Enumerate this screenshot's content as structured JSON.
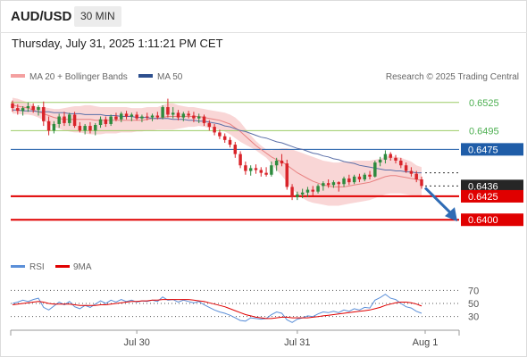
{
  "header": {
    "symbol": "AUD/USD",
    "interval": "30 MIN",
    "datetime": "Thursday, July 31, 2025 1:11:21 PM CET"
  },
  "legend": {
    "ma20_bb": "MA 20 + Bollinger Bands",
    "ma50": "MA 50",
    "credit": "Research © 2025 Trading Central",
    "rsi": "RSI",
    "rsi_ma": "9MA"
  },
  "colors": {
    "bullish": "#2e8b3e",
    "bearish": "#d9242a",
    "band_fill": "#f7c8c8",
    "ma20": "#e88080",
    "ma50": "#5b6fa8",
    "level_green": "#9ccc65",
    "level_blue": "#1f5da8",
    "level_red": "#e00000",
    "arrow": "#2f6cb5",
    "rsi": "#5b8fd8",
    "rsi_ma": "#e00000"
  },
  "chart_data": {
    "type": "candlestick",
    "symbol": "AUD/USD",
    "timeframe": "30 MIN",
    "x_ticks": [
      "Jul 30",
      "Jul 31",
      "Aug 1"
    ],
    "y_range": [
      0.6385,
      0.654
    ],
    "levels": [
      {
        "value": 0.6525,
        "label": "0.6525",
        "style": "green-line"
      },
      {
        "value": 0.6495,
        "label": "0.6495",
        "style": "green-line"
      },
      {
        "value": 0.6475,
        "label": "0.6475",
        "style": "blue-line"
      },
      {
        "value": 0.6436,
        "label": "0.6436",
        "style": "last-price"
      },
      {
        "value": 0.6425,
        "label": "0.6425",
        "style": "red-line"
      },
      {
        "value": 0.64,
        "label": "0.6400",
        "style": "red-line"
      }
    ],
    "forecast_arrow": {
      "from": 0.6434,
      "to": 0.6402
    },
    "candles": [
      [
        0.6524,
        0.6527,
        0.6515,
        0.6519
      ],
      [
        0.6519,
        0.6523,
        0.6512,
        0.6516
      ],
      [
        0.6516,
        0.6521,
        0.6511,
        0.6519
      ],
      [
        0.6519,
        0.6525,
        0.6515,
        0.6521
      ],
      [
        0.6521,
        0.6524,
        0.6514,
        0.6517
      ],
      [
        0.6517,
        0.6522,
        0.6511,
        0.652
      ],
      [
        0.652,
        0.6526,
        0.65,
        0.6505
      ],
      [
        0.6505,
        0.651,
        0.649,
        0.6495
      ],
      [
        0.6495,
        0.6505,
        0.6492,
        0.6502
      ],
      [
        0.6502,
        0.6513,
        0.6498,
        0.651
      ],
      [
        0.651,
        0.6515,
        0.65,
        0.6503
      ],
      [
        0.6503,
        0.6514,
        0.65,
        0.6512
      ],
      [
        0.6512,
        0.6515,
        0.6498,
        0.65
      ],
      [
        0.65,
        0.6504,
        0.6493,
        0.6495
      ],
      [
        0.6495,
        0.6502,
        0.6491,
        0.65
      ],
      [
        0.65,
        0.6504,
        0.6492,
        0.6495
      ],
      [
        0.6495,
        0.6503,
        0.649,
        0.6501
      ],
      [
        0.6501,
        0.651,
        0.6498,
        0.6507
      ],
      [
        0.6507,
        0.651,
        0.6499,
        0.6502
      ],
      [
        0.6502,
        0.6512,
        0.65,
        0.651
      ],
      [
        0.651,
        0.6514,
        0.6505,
        0.6507
      ],
      [
        0.6507,
        0.6515,
        0.6504,
        0.6513
      ],
      [
        0.6513,
        0.6516,
        0.6507,
        0.651
      ],
      [
        0.651,
        0.6514,
        0.6505,
        0.6512
      ],
      [
        0.6512,
        0.6515,
        0.6506,
        0.6508
      ],
      [
        0.6508,
        0.6512,
        0.6504,
        0.651
      ],
      [
        0.651,
        0.6514,
        0.6506,
        0.6509
      ],
      [
        0.6509,
        0.6513,
        0.6505,
        0.6511
      ],
      [
        0.6511,
        0.6515,
        0.6507,
        0.6509
      ],
      [
        0.6509,
        0.6522,
        0.6507,
        0.652
      ],
      [
        0.652,
        0.6529,
        0.6509,
        0.6512
      ],
      [
        0.6512,
        0.652,
        0.6508,
        0.6514
      ],
      [
        0.6514,
        0.6517,
        0.6506,
        0.6509
      ],
      [
        0.6509,
        0.6515,
        0.6505,
        0.6513
      ],
      [
        0.6513,
        0.6516,
        0.6508,
        0.6511
      ],
      [
        0.6511,
        0.6515,
        0.6504,
        0.6508
      ],
      [
        0.6508,
        0.6513,
        0.6503,
        0.651
      ],
      [
        0.651,
        0.6512,
        0.65,
        0.6503
      ],
      [
        0.6503,
        0.6506,
        0.6495,
        0.6499
      ],
      [
        0.6499,
        0.6502,
        0.649,
        0.6493
      ],
      [
        0.6493,
        0.6496,
        0.6486,
        0.6489
      ],
      [
        0.6489,
        0.6492,
        0.6482,
        0.6485
      ],
      [
        0.6485,
        0.6488,
        0.6477,
        0.648
      ],
      [
        0.648,
        0.6483,
        0.6466,
        0.647
      ],
      [
        0.647,
        0.6473,
        0.6455,
        0.6458
      ],
      [
        0.6458,
        0.6462,
        0.6448,
        0.6452
      ],
      [
        0.6452,
        0.6458,
        0.6447,
        0.6455
      ],
      [
        0.6455,
        0.6459,
        0.6449,
        0.6453
      ],
      [
        0.6453,
        0.6456,
        0.6446,
        0.645
      ],
      [
        0.645,
        0.6456,
        0.6446,
        0.6448
      ],
      [
        0.6448,
        0.6462,
        0.6446,
        0.6458
      ],
      [
        0.6458,
        0.6466,
        0.6452,
        0.6463
      ],
      [
        0.6463,
        0.647,
        0.6457,
        0.646
      ],
      [
        0.646,
        0.6464,
        0.6432,
        0.6435
      ],
      [
        0.6435,
        0.6438,
        0.6421,
        0.6424
      ],
      [
        0.6424,
        0.643,
        0.6421,
        0.6427
      ],
      [
        0.6427,
        0.6433,
        0.6423,
        0.6429
      ],
      [
        0.6429,
        0.6435,
        0.6424,
        0.6432
      ],
      [
        0.6432,
        0.6436,
        0.6426,
        0.643
      ],
      [
        0.643,
        0.6438,
        0.6428,
        0.6436
      ],
      [
        0.6436,
        0.6441,
        0.6431,
        0.6439
      ],
      [
        0.6439,
        0.6443,
        0.6434,
        0.6437
      ],
      [
        0.6437,
        0.6442,
        0.6434,
        0.644
      ],
      [
        0.644,
        0.6441,
        0.643,
        0.6438
      ],
      [
        0.6438,
        0.6446,
        0.6435,
        0.6444
      ],
      [
        0.6444,
        0.6448,
        0.6437,
        0.644
      ],
      [
        0.644,
        0.6448,
        0.6438,
        0.6446
      ],
      [
        0.6446,
        0.6449,
        0.644,
        0.6443
      ],
      [
        0.6443,
        0.645,
        0.6441,
        0.6448
      ],
      [
        0.6448,
        0.6452,
        0.6443,
        0.6446
      ],
      [
        0.6446,
        0.6463,
        0.6445,
        0.6461
      ],
      [
        0.6461,
        0.6467,
        0.6457,
        0.6464
      ],
      [
        0.6464,
        0.6474,
        0.646,
        0.647
      ],
      [
        0.647,
        0.6472,
        0.6463,
        0.6466
      ],
      [
        0.6466,
        0.6469,
        0.646,
        0.6463
      ],
      [
        0.6463,
        0.6466,
        0.6455,
        0.6458
      ],
      [
        0.6458,
        0.6461,
        0.645,
        0.6452
      ],
      [
        0.6452,
        0.6456,
        0.6446,
        0.6449
      ],
      [
        0.6449,
        0.6452,
        0.644,
        0.6443
      ],
      [
        0.6443,
        0.6446,
        0.6433,
        0.6436
      ]
    ],
    "bollinger": {
      "upper": [
        0.653,
        0.6529,
        0.6527,
        0.6525,
        0.6522,
        0.652,
        0.652,
        0.6519,
        0.6518,
        0.6518,
        0.6519,
        0.652,
        0.6521,
        0.6521,
        0.6522,
        0.6522,
        0.6521,
        0.652,
        0.652,
        0.652,
        0.652,
        0.652,
        0.652,
        0.6519,
        0.6519,
        0.6519,
        0.652,
        0.652,
        0.652,
        0.6522,
        0.6524,
        0.6524,
        0.6522,
        0.6521,
        0.652,
        0.652,
        0.6519,
        0.6518,
        0.6517,
        0.6516,
        0.6515,
        0.6514,
        0.6512,
        0.6509,
        0.6504,
        0.6497,
        0.649,
        0.6484,
        0.6479,
        0.6475,
        0.6474,
        0.6475,
        0.6476,
        0.6476,
        0.6475,
        0.6473,
        0.6471,
        0.6469,
        0.6467,
        0.6465,
        0.6463,
        0.6462,
        0.6461,
        0.6461,
        0.6462,
        0.6462,
        0.6463,
        0.6463,
        0.6463,
        0.6463,
        0.6464,
        0.6465,
        0.6467,
        0.6468,
        0.6467,
        0.6466,
        0.6464,
        0.6462,
        0.6458,
        0.6456
      ],
      "middle": [
        0.6522,
        0.6521,
        0.652,
        0.6519,
        0.6517,
        0.6515,
        0.6513,
        0.6511,
        0.6509,
        0.6508,
        0.6507,
        0.6507,
        0.6507,
        0.6507,
        0.6507,
        0.6507,
        0.6506,
        0.6506,
        0.6506,
        0.6506,
        0.6506,
        0.6506,
        0.6506,
        0.6506,
        0.6506,
        0.6506,
        0.6507,
        0.6508,
        0.6508,
        0.6509,
        0.651,
        0.651,
        0.651,
        0.651,
        0.651,
        0.651,
        0.651,
        0.6509,
        0.6508,
        0.6507,
        0.6506,
        0.6504,
        0.6502,
        0.6498,
        0.6494,
        0.6489,
        0.6484,
        0.6479,
        0.6475,
        0.6471,
        0.6467,
        0.6464,
        0.6462,
        0.6458,
        0.6454,
        0.645,
        0.6447,
        0.6444,
        0.6441,
        0.6439,
        0.6437,
        0.6436,
        0.6435,
        0.6435,
        0.6435,
        0.6436,
        0.6437,
        0.6438,
        0.6439,
        0.644,
        0.6442,
        0.6444,
        0.6446,
        0.6447,
        0.6447,
        0.6446,
        0.6445,
        0.6444,
        0.6443,
        0.6442
      ],
      "lower": [
        0.6513,
        0.6513,
        0.6512,
        0.6512,
        0.6511,
        0.6509,
        0.6506,
        0.6502,
        0.6499,
        0.6497,
        0.6495,
        0.6494,
        0.6493,
        0.6493,
        0.6492,
        0.6491,
        0.6491,
        0.6491,
        0.6492,
        0.6492,
        0.6492,
        0.6493,
        0.6493,
        0.6493,
        0.6494,
        0.6494,
        0.6495,
        0.6495,
        0.6496,
        0.6496,
        0.6496,
        0.6496,
        0.6497,
        0.6498,
        0.6499,
        0.6499,
        0.65,
        0.6499,
        0.6498,
        0.6497,
        0.6496,
        0.6494,
        0.6491,
        0.6487,
        0.6483,
        0.648,
        0.6477,
        0.6474,
        0.647,
        0.6466,
        0.646,
        0.6453,
        0.6447,
        0.644,
        0.6433,
        0.6427,
        0.6423,
        0.642,
        0.6418,
        0.6417,
        0.6416,
        0.6415,
        0.6415,
        0.6415,
        0.6416,
        0.6417,
        0.6418,
        0.6419,
        0.642,
        0.6421,
        0.6423,
        0.6425,
        0.6427,
        0.6428,
        0.6428,
        0.6428,
        0.6427,
        0.6426,
        0.6426,
        0.6425
      ]
    },
    "ma50": [
      0.6517,
      0.6517,
      0.6516,
      0.6516,
      0.6516,
      0.6515,
      0.6515,
      0.6515,
      0.6514,
      0.6514,
      0.6514,
      0.6513,
      0.6513,
      0.6513,
      0.6512,
      0.6512,
      0.6512,
      0.6512,
      0.6511,
      0.6511,
      0.6511,
      0.651,
      0.651,
      0.651,
      0.6509,
      0.6509,
      0.6509,
      0.6508,
      0.6508,
      0.6508,
      0.6508,
      0.6507,
      0.6507,
      0.6507,
      0.6506,
      0.6506,
      0.6505,
      0.6505,
      0.6504,
      0.6503,
      0.6502,
      0.65,
      0.6499,
      0.6497,
      0.6495,
      0.6494,
      0.6492,
      0.649,
      0.6488,
      0.6487,
      0.6485,
      0.6483,
      0.6482,
      0.648,
      0.6478,
      0.6476,
      0.6475,
      0.6473,
      0.6471,
      0.647,
      0.6468,
      0.6467,
      0.6465,
      0.6464,
      0.6462,
      0.6461,
      0.646,
      0.6458,
      0.6457,
      0.6456,
      0.6455,
      0.6454,
      0.6453,
      0.6453,
      0.6452,
      0.6452,
      0.6451,
      0.6451,
      0.645,
      0.645
    ],
    "rsi_panel": {
      "levels": [
        70,
        50,
        30
      ],
      "y_range": [
        20,
        80
      ],
      "rsi": [
        50,
        52,
        55,
        53,
        56,
        58,
        44,
        40,
        46,
        52,
        48,
        53,
        45,
        42,
        47,
        44,
        49,
        54,
        50,
        55,
        52,
        56,
        53,
        55,
        52,
        54,
        53,
        55,
        53,
        60,
        55,
        56,
        52,
        55,
        53,
        51,
        53,
        48,
        44,
        40,
        37,
        35,
        32,
        28,
        24,
        23,
        28,
        27,
        26,
        27,
        33,
        37,
        35,
        25,
        21,
        26,
        28,
        31,
        30,
        34,
        37,
        36,
        38,
        36,
        40,
        38,
        42,
        40,
        44,
        43,
        55,
        59,
        64,
        58,
        56,
        50,
        45,
        43,
        38,
        35
      ],
      "rsi_ma": [
        48,
        49,
        50,
        51,
        52,
        53,
        52,
        50,
        49,
        49,
        49,
        49,
        48,
        47,
        47,
        47,
        47,
        48,
        48,
        49,
        50,
        51,
        52,
        53,
        53,
        54,
        54,
        55,
        55,
        56,
        56,
        56,
        56,
        56,
        56,
        55,
        54,
        53,
        51,
        49,
        47,
        45,
        42,
        39,
        36,
        33,
        31,
        29,
        28,
        27,
        27,
        28,
        29,
        29,
        28,
        28,
        28,
        28,
        29,
        30,
        31,
        32,
        33,
        34,
        35,
        36,
        37,
        38,
        39,
        40,
        42,
        44,
        47,
        49,
        51,
        52,
        52,
        51,
        49,
        46
      ]
    }
  }
}
